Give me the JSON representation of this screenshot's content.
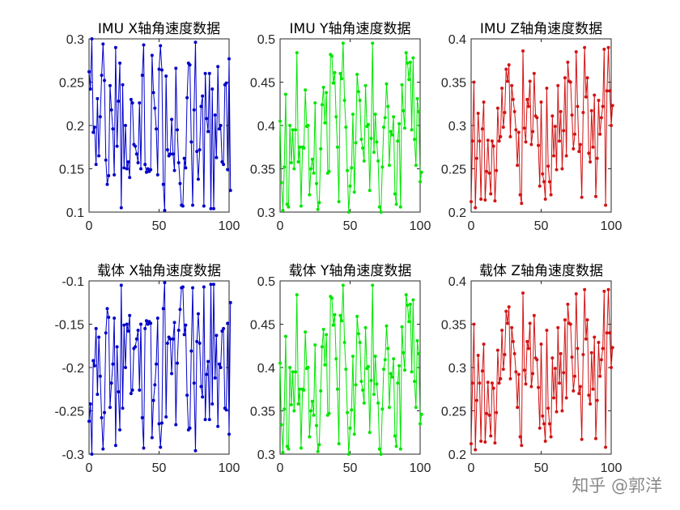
{
  "watermark": "知乎 @郭洋",
  "chart_data": [
    {
      "type": "line",
      "title": "IMU X轴角速度数据",
      "color": "#0000c8",
      "xlim": [
        0,
        100
      ],
      "ylim": [
        0.1,
        0.3
      ],
      "xticks": [
        "0",
        "50",
        "100"
      ],
      "yticks": [
        "0.3",
        "0.25",
        "0.2",
        "0.15",
        "0.1"
      ],
      "y": [
        0.262,
        0.242,
        0.3,
        0.192,
        0.198,
        0.155,
        0.231,
        0.165,
        0.21,
        0.258,
        0.294,
        0.252,
        0.16,
        0.132,
        0.142,
        0.246,
        0.218,
        0.196,
        0.143,
        0.29,
        0.176,
        0.228,
        0.272,
        0.105,
        0.247,
        0.151,
        0.2,
        0.15,
        0.158,
        0.14,
        0.23,
        0.226,
        0.178,
        0.176,
        0.167,
        0.157,
        0.226,
        0.15,
        0.258,
        0.293,
        0.155,
        0.146,
        0.15,
        0.147,
        0.149,
        0.281,
        0.238,
        0.22,
        0.196,
        0.143,
        0.265,
        0.292,
        0.264,
        0.132,
        0.102,
        0.257,
        0.172,
        0.165,
        0.167,
        0.207,
        0.167,
        0.148,
        0.266,
        0.195,
        0.157,
        0.133,
        0.108,
        0.107,
        0.162,
        0.151,
        0.232,
        0.272,
        0.27,
        0.181,
        0.108,
        0.218,
        0.296,
        0.17,
        0.138,
        0.172,
        0.222,
        0.234,
        0.107,
        0.26,
        0.208,
        0.193,
        0.26,
        0.104,
        0.242,
        0.104,
        0.212,
        0.163,
        0.268,
        0.196,
        0.2,
        0.158,
        0.155,
        0.247,
        0.249,
        0.149,
        0.277,
        0.125
      ]
    },
    {
      "type": "line",
      "title": "IMU Y轴角速度数据",
      "color": "#00e600",
      "xlim": [
        0,
        100
      ],
      "ylim": [
        0.3,
        0.5
      ],
      "xticks": [
        "0",
        "50",
        "100"
      ],
      "yticks": [
        "0.5",
        "0.45",
        "0.4",
        "0.35",
        "0.3"
      ],
      "y": [
        0.405,
        0.334,
        0.302,
        0.352,
        0.436,
        0.309,
        0.306,
        0.4,
        0.357,
        0.395,
        0.35,
        0.395,
        0.484,
        0.358,
        0.375,
        0.307,
        0.375,
        0.374,
        0.441,
        0.399,
        0.4,
        0.32,
        0.35,
        0.361,
        0.345,
        0.426,
        0.333,
        0.303,
        0.311,
        0.373,
        0.424,
        0.444,
        0.403,
        0.438,
        0.345,
        0.347,
        0.482,
        0.48,
        0.449,
        0.461,
        0.41,
        0.375,
        0.312,
        0.46,
        0.454,
        0.495,
        0.429,
        0.398,
        0.348,
        0.3,
        0.33,
        0.351,
        0.413,
        0.323,
        0.38,
        0.459,
        0.439,
        0.429,
        0.384,
        0.374,
        0.359,
        0.446,
        0.399,
        0.401,
        0.325,
        0.385,
        0.495,
        0.369,
        0.413,
        0.381,
        0.359,
        0.306,
        0.3,
        0.352,
        0.398,
        0.409,
        0.448,
        0.422,
        0.354,
        0.393,
        0.389,
        0.41,
        0.321,
        0.309,
        0.382,
        0.402,
        0.306,
        0.447,
        0.417,
        0.397,
        0.484,
        0.472,
        0.453,
        0.473,
        0.395,
        0.478,
        0.384,
        0.354,
        0.431,
        0.416,
        0.335,
        0.346
      ]
    },
    {
      "type": "line",
      "title": "IMU Z轴角速度数据",
      "color": "#d21414",
      "xlim": [
        0,
        100
      ],
      "ylim": [
        0.2,
        0.4
      ],
      "xticks": [
        "0",
        "50",
        "100"
      ],
      "yticks": [
        "0.4",
        "0.35",
        "0.3",
        "0.25",
        "0.2"
      ],
      "y": [
        0.212,
        0.282,
        0.35,
        0.205,
        0.262,
        0.314,
        0.282,
        0.215,
        0.296,
        0.327,
        0.214,
        0.247,
        0.283,
        0.245,
        0.221,
        0.282,
        0.276,
        0.213,
        0.248,
        0.32,
        0.282,
        0.287,
        0.343,
        0.298,
        0.315,
        0.365,
        0.351,
        0.37,
        0.287,
        0.346,
        0.33,
        0.316,
        0.295,
        0.254,
        0.292,
        0.22,
        0.21,
        0.386,
        0.297,
        0.281,
        0.33,
        0.322,
        0.351,
        0.278,
        0.293,
        0.36,
        0.311,
        0.309,
        0.277,
        0.23,
        0.327,
        0.244,
        0.235,
        0.215,
        0.343,
        0.253,
        0.235,
        0.22,
        0.311,
        0.265,
        0.299,
        0.249,
        0.346,
        0.282,
        0.316,
        0.25,
        0.294,
        0.355,
        0.265,
        0.373,
        0.351,
        0.35,
        0.312,
        0.273,
        0.29,
        0.385,
        0.322,
        0.27,
        0.278,
        0.217,
        0.315,
        0.39,
        0.333,
        0.355,
        0.268,
        0.258,
        0.317,
        0.275,
        0.335,
        0.218,
        0.262,
        0.329,
        0.29,
        0.309,
        0.322,
        0.388,
        0.208,
        0.34,
        0.39,
        0.34,
        0.3,
        0.323
      ]
    },
    {
      "type": "line",
      "title": "载体 X轴角速度数据",
      "color": "#0000c8",
      "xlim": [
        0,
        100
      ],
      "ylim": [
        -0.3,
        -0.1
      ],
      "xticks": [
        "0",
        "50",
        "100"
      ],
      "yticks": [
        "-0.1",
        "-0.15",
        "-0.2",
        "-0.25",
        "-0.3"
      ],
      "y": [
        -0.262,
        -0.242,
        -0.3,
        -0.192,
        -0.198,
        -0.155,
        -0.231,
        -0.165,
        -0.21,
        -0.258,
        -0.294,
        -0.252,
        -0.16,
        -0.132,
        -0.142,
        -0.246,
        -0.218,
        -0.196,
        -0.143,
        -0.29,
        -0.176,
        -0.228,
        -0.272,
        -0.105,
        -0.247,
        -0.151,
        -0.2,
        -0.15,
        -0.158,
        -0.14,
        -0.23,
        -0.226,
        -0.178,
        -0.176,
        -0.167,
        -0.157,
        -0.226,
        -0.15,
        -0.258,
        -0.293,
        -0.155,
        -0.146,
        -0.15,
        -0.147,
        -0.149,
        -0.281,
        -0.238,
        -0.22,
        -0.196,
        -0.143,
        -0.265,
        -0.292,
        -0.264,
        -0.132,
        -0.102,
        -0.257,
        -0.172,
        -0.165,
        -0.167,
        -0.207,
        -0.167,
        -0.148,
        -0.266,
        -0.195,
        -0.157,
        -0.133,
        -0.108,
        -0.107,
        -0.162,
        -0.151,
        -0.232,
        -0.272,
        -0.27,
        -0.181,
        -0.108,
        -0.218,
        -0.296,
        -0.17,
        -0.138,
        -0.172,
        -0.222,
        -0.234,
        -0.107,
        -0.26,
        -0.208,
        -0.193,
        -0.26,
        -0.104,
        -0.242,
        -0.104,
        -0.212,
        -0.163,
        -0.268,
        -0.196,
        -0.2,
        -0.158,
        -0.155,
        -0.247,
        -0.249,
        -0.149,
        -0.277,
        -0.125
      ]
    },
    {
      "type": "line",
      "title": "载体 Y轴角速度数据",
      "color": "#00e600",
      "xlim": [
        0,
        100
      ],
      "ylim": [
        0.3,
        0.5
      ],
      "xticks": [
        "0",
        "50",
        "100"
      ],
      "yticks": [
        "0.5",
        "0.45",
        "0.4",
        "0.35",
        "0.3"
      ],
      "y": [
        0.405,
        0.334,
        0.302,
        0.352,
        0.436,
        0.309,
        0.306,
        0.4,
        0.357,
        0.395,
        0.35,
        0.395,
        0.484,
        0.358,
        0.375,
        0.307,
        0.375,
        0.374,
        0.441,
        0.399,
        0.4,
        0.32,
        0.35,
        0.361,
        0.345,
        0.426,
        0.333,
        0.303,
        0.311,
        0.373,
        0.424,
        0.444,
        0.403,
        0.438,
        0.345,
        0.347,
        0.482,
        0.48,
        0.449,
        0.461,
        0.41,
        0.375,
        0.312,
        0.46,
        0.454,
        0.495,
        0.429,
        0.398,
        0.348,
        0.3,
        0.33,
        0.351,
        0.413,
        0.323,
        0.38,
        0.459,
        0.439,
        0.429,
        0.384,
        0.374,
        0.359,
        0.446,
        0.399,
        0.401,
        0.325,
        0.385,
        0.495,
        0.369,
        0.413,
        0.381,
        0.359,
        0.306,
        0.3,
        0.352,
        0.398,
        0.409,
        0.448,
        0.422,
        0.354,
        0.393,
        0.389,
        0.41,
        0.321,
        0.309,
        0.382,
        0.402,
        0.306,
        0.447,
        0.417,
        0.397,
        0.484,
        0.472,
        0.453,
        0.473,
        0.395,
        0.478,
        0.384,
        0.354,
        0.431,
        0.416,
        0.335,
        0.346
      ]
    },
    {
      "type": "line",
      "title": "载体 Z轴角速度数据",
      "color": "#d21414",
      "xlim": [
        0,
        100
      ],
      "ylim": [
        0.2,
        0.4
      ],
      "xticks": [
        "0",
        "50",
        "100"
      ],
      "yticks": [
        "0.4",
        "0.35",
        "0.3",
        "0.25",
        "0.2"
      ],
      "y": [
        0.212,
        0.282,
        0.35,
        0.205,
        0.262,
        0.314,
        0.282,
        0.215,
        0.296,
        0.327,
        0.214,
        0.247,
        0.283,
        0.245,
        0.221,
        0.282,
        0.276,
        0.213,
        0.248,
        0.32,
        0.282,
        0.287,
        0.343,
        0.298,
        0.315,
        0.365,
        0.351,
        0.37,
        0.287,
        0.346,
        0.33,
        0.316,
        0.295,
        0.254,
        0.292,
        0.22,
        0.21,
        0.386,
        0.297,
        0.281,
        0.33,
        0.322,
        0.351,
        0.278,
        0.293,
        0.36,
        0.311,
        0.309,
        0.277,
        0.23,
        0.327,
        0.244,
        0.235,
        0.215,
        0.343,
        0.253,
        0.235,
        0.22,
        0.311,
        0.265,
        0.299,
        0.249,
        0.346,
        0.282,
        0.316,
        0.25,
        0.294,
        0.355,
        0.265,
        0.373,
        0.351,
        0.35,
        0.312,
        0.273,
        0.29,
        0.385,
        0.322,
        0.27,
        0.278,
        0.217,
        0.315,
        0.39,
        0.333,
        0.355,
        0.268,
        0.258,
        0.317,
        0.275,
        0.335,
        0.218,
        0.262,
        0.329,
        0.29,
        0.309,
        0.322,
        0.388,
        0.208,
        0.34,
        0.39,
        0.34,
        0.3,
        0.323
      ]
    }
  ]
}
